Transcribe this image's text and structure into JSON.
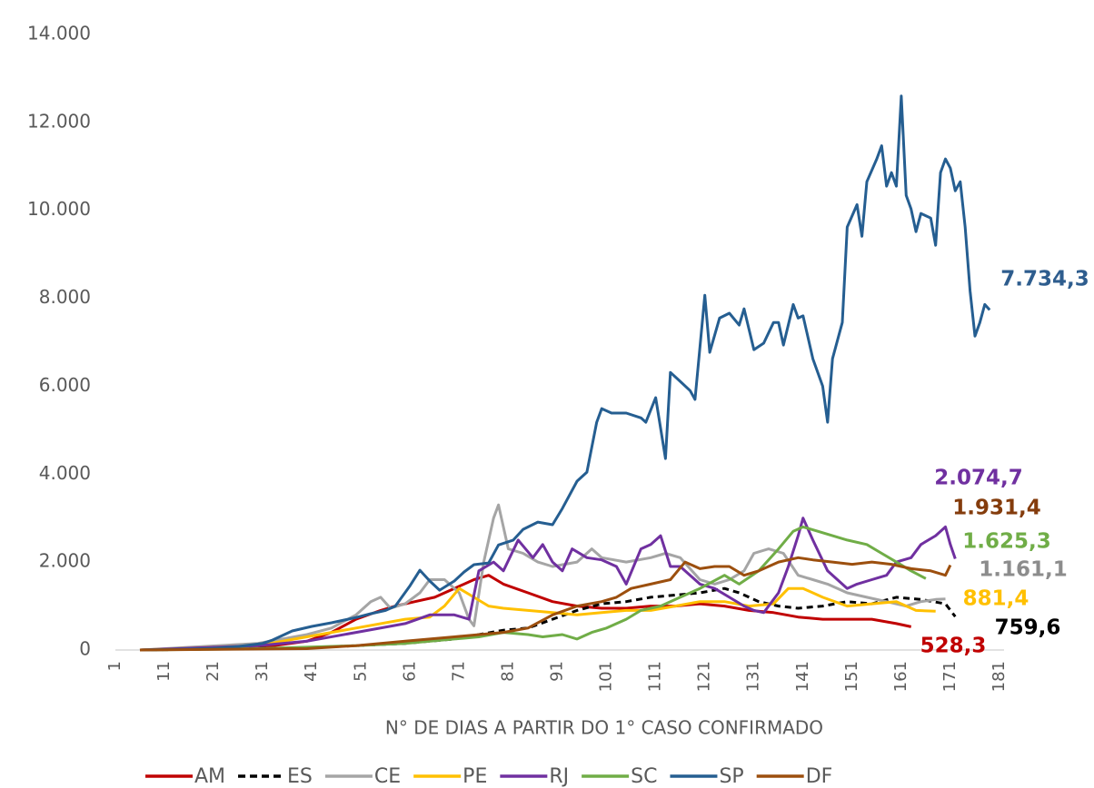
{
  "chart_data": {
    "type": "line",
    "x_label": "N° DE DIAS A PARTIR DO 1° CASO CONFIRMADO",
    "xlim": [
      1,
      181
    ],
    "xticks": [
      1,
      11,
      21,
      31,
      41,
      51,
      61,
      71,
      81,
      91,
      101,
      111,
      121,
      131,
      141,
      151,
      161,
      171,
      181
    ],
    "ylim": [
      0,
      14000
    ],
    "yticks": [
      0,
      {
        "value": 2000,
        "label": "2.000"
      },
      {
        "value": 4000,
        "label": "4.000"
      },
      {
        "value": 6000,
        "label": "6.000"
      },
      {
        "value": 8000,
        "label": "8.000"
      },
      {
        "value": 10000,
        "label": "10.000"
      },
      {
        "value": 12000,
        "label": "12.000"
      },
      {
        "value": 14000,
        "label": "14.000"
      }
    ],
    "series": [
      {
        "name": "AM",
        "color": "#c00000",
        "label_color": "#c00000",
        "end_label": "528,3",
        "x": [
          6,
          30,
          40,
          45,
          50,
          55,
          58,
          62,
          66,
          70,
          74,
          77,
          80,
          85,
          90,
          95,
          100,
          105,
          110,
          115,
          120,
          125,
          130,
          135,
          140,
          145,
          150,
          155,
          160,
          163
        ],
        "values": [
          0,
          50,
          200,
          400,
          700,
          900,
          1000,
          1100,
          1200,
          1400,
          1600,
          1700,
          1500,
          1300,
          1100,
          1000,
          950,
          950,
          1000,
          1000,
          1050,
          1000,
          900,
          850,
          750,
          700,
          700,
          700,
          600,
          528.3
        ]
      },
      {
        "name": "ES",
        "color": "#000000",
        "label_color": "#000000",
        "dashed": true,
        "end_label": "759,6",
        "x": [
          6,
          40,
          50,
          60,
          70,
          75,
          80,
          85,
          90,
          95,
          100,
          105,
          110,
          115,
          120,
          125,
          128,
          132,
          136,
          140,
          145,
          150,
          155,
          160,
          165,
          170,
          172
        ],
        "values": [
          0,
          50,
          100,
          150,
          250,
          350,
          450,
          500,
          700,
          900,
          1050,
          1100,
          1200,
          1250,
          1300,
          1400,
          1300,
          1100,
          1000,
          950,
          1000,
          1100,
          1050,
          1200,
          1150,
          1050,
          759.6
        ]
      },
      {
        "name": "CE",
        "color": "#a5a5a5",
        "label_color": "#8c8c8c",
        "end_label": "1.161,1",
        "x": [
          6,
          30,
          40,
          45,
          50,
          53,
          55,
          57,
          60,
          63,
          65,
          68,
          71,
          73,
          74,
          76,
          78,
          79,
          81,
          84,
          87,
          90,
          95,
          98,
          100,
          105,
          110,
          113,
          116,
          120,
          123,
          126,
          129,
          131,
          134,
          137,
          140,
          143,
          146,
          150,
          154,
          158,
          162,
          165,
          168,
          170
        ],
        "values": [
          0,
          150,
          350,
          500,
          800,
          1100,
          1200,
          950,
          1050,
          1300,
          1600,
          1600,
          1300,
          700,
          550,
          2000,
          3000,
          3300,
          2300,
          2200,
          2000,
          1900,
          2000,
          2300,
          2100,
          2000,
          2100,
          2200,
          2100,
          1600,
          1500,
          1600,
          1800,
          2200,
          2300,
          2200,
          1700,
          1600,
          1500,
          1300,
          1200,
          1100,
          1000,
          1100,
          1150,
          1161.1
        ]
      },
      {
        "name": "PE",
        "color": "#ffc000",
        "label_color": "#ffc000",
        "end_label": "881,4",
        "x": [
          6,
          30,
          40,
          50,
          60,
          65,
          68,
          71,
          74,
          77,
          80,
          85,
          90,
          95,
          100,
          105,
          110,
          115,
          120,
          125,
          130,
          135,
          138,
          141,
          145,
          150,
          155,
          160,
          164,
          168
        ],
        "values": [
          0,
          100,
          300,
          500,
          700,
          750,
          1000,
          1400,
          1200,
          1000,
          950,
          900,
          850,
          800,
          850,
          900,
          900,
          1000,
          1100,
          1100,
          1000,
          1050,
          1400,
          1400,
          1200,
          1000,
          1050,
          1100,
          900,
          881.4
        ]
      },
      {
        "name": "RJ",
        "color": "#7030a0",
        "label_color": "#7030a0",
        "end_label": "2.074,7",
        "x": [
          6,
          30,
          40,
          50,
          60,
          65,
          70,
          73,
          75,
          78,
          80,
          83,
          86,
          88,
          90,
          92,
          94,
          97,
          100,
          103,
          105,
          108,
          110,
          112,
          114,
          116,
          118,
          120,
          123,
          126,
          129,
          131,
          133,
          136,
          138,
          140,
          141,
          143,
          146,
          148,
          150,
          152,
          155,
          158,
          160,
          163,
          165,
          168,
          170,
          171,
          172
        ],
        "values": [
          0,
          100,
          200,
          400,
          600,
          800,
          800,
          700,
          1800,
          2000,
          1800,
          2500,
          2100,
          2400,
          2000,
          1800,
          2300,
          2100,
          2050,
          1900,
          1500,
          2300,
          2400,
          2600,
          1900,
          1900,
          1700,
          1500,
          1400,
          1200,
          1000,
          900,
          850,
          1300,
          1900,
          2600,
          3000,
          2500,
          1800,
          1600,
          1400,
          1500,
          1600,
          1700,
          2000,
          2100,
          2400,
          2600,
          2800,
          2400,
          2074.7
        ]
      },
      {
        "name": "SC",
        "color": "#70ad47",
        "label_color": "#70ad47",
        "end_label": "1.625,3",
        "x": [
          6,
          30,
          50,
          60,
          70,
          75,
          80,
          85,
          88,
          92,
          95,
          98,
          101,
          105,
          108,
          112,
          116,
          120,
          125,
          128,
          132,
          136,
          139,
          141,
          144,
          147,
          150,
          154,
          157,
          160,
          163,
          166
        ],
        "values": [
          0,
          30,
          100,
          150,
          250,
          300,
          400,
          350,
          300,
          350,
          250,
          400,
          500,
          700,
          900,
          1000,
          1200,
          1400,
          1700,
          1500,
          1800,
          2300,
          2700,
          2800,
          2700,
          2600,
          2500,
          2400,
          2200,
          2000,
          1800,
          1625.3
        ]
      },
      {
        "name": "SP",
        "color": "#255e91",
        "label_color": "#2e5d8e",
        "end_label": "7.734,3",
        "x": [
          6,
          11,
          16,
          21,
          26,
          31,
          33,
          37,
          41,
          45,
          50,
          53,
          56,
          58,
          61,
          63,
          65,
          67,
          70,
          72,
          74,
          77,
          79,
          82,
          84,
          87,
          90,
          92,
          95,
          97,
          99,
          100,
          102,
          105,
          108,
          109,
          111,
          113,
          114,
          116,
          118,
          119,
          121,
          122,
          124,
          126,
          128,
          129,
          131,
          133,
          135,
          136,
          137,
          139,
          140,
          141,
          143,
          145,
          146,
          147,
          149,
          150,
          152,
          153,
          154,
          156,
          157,
          158,
          159,
          160,
          161,
          162,
          163,
          164,
          165,
          167,
          168,
          169,
          170,
          171,
          172,
          173,
          174,
          175,
          176,
          177,
          178,
          179
        ],
        "values": [
          0,
          10,
          20,
          40,
          80,
          150,
          227,
          433,
          536,
          620,
          740,
          825,
          900,
          1000,
          1465,
          1816,
          1570,
          1360,
          1570,
          1775,
          1940,
          1980,
          2390,
          2500,
          2745,
          2910,
          2850,
          3220,
          3840,
          4045,
          5180,
          5490,
          5390,
          5390,
          5280,
          5180,
          5740,
          4355,
          6315,
          6110,
          5900,
          5700,
          8070,
          6770,
          7550,
          7660,
          7390,
          7760,
          6830,
          6980,
          7450,
          7450,
          6935,
          7860,
          7550,
          7600,
          6625,
          6000,
          5180,
          6625,
          7450,
          9620,
          10130,
          9410,
          10650,
          11170,
          11470,
          10550,
          10860,
          10550,
          12600,
          10340,
          10030,
          9515,
          9930,
          9825,
          9205,
          10860,
          11170,
          10960,
          10445,
          10650,
          9620,
          8170,
          7140,
          7450,
          7860,
          7734.3
        ]
      },
      {
        "name": "DF",
        "color": "#9c4f0e",
        "label_color": "#843c0c",
        "end_label": "1.931,4",
        "x": [
          6,
          40,
          50,
          60,
          70,
          80,
          85,
          90,
          95,
          100,
          103,
          106,
          110,
          114,
          117,
          120,
          123,
          126,
          129,
          132,
          136,
          140,
          143,
          147,
          151,
          155,
          159,
          163,
          167,
          170,
          171
        ],
        "values": [
          0,
          30,
          100,
          200,
          300,
          400,
          500,
          800,
          1000,
          1100,
          1200,
          1400,
          1500,
          1600,
          2000,
          1850,
          1900,
          1900,
          1700,
          1800,
          2000,
          2100,
          2050,
          2000,
          1950,
          2000,
          1950,
          1850,
          1800,
          1700,
          1931.4
        ]
      }
    ]
  }
}
